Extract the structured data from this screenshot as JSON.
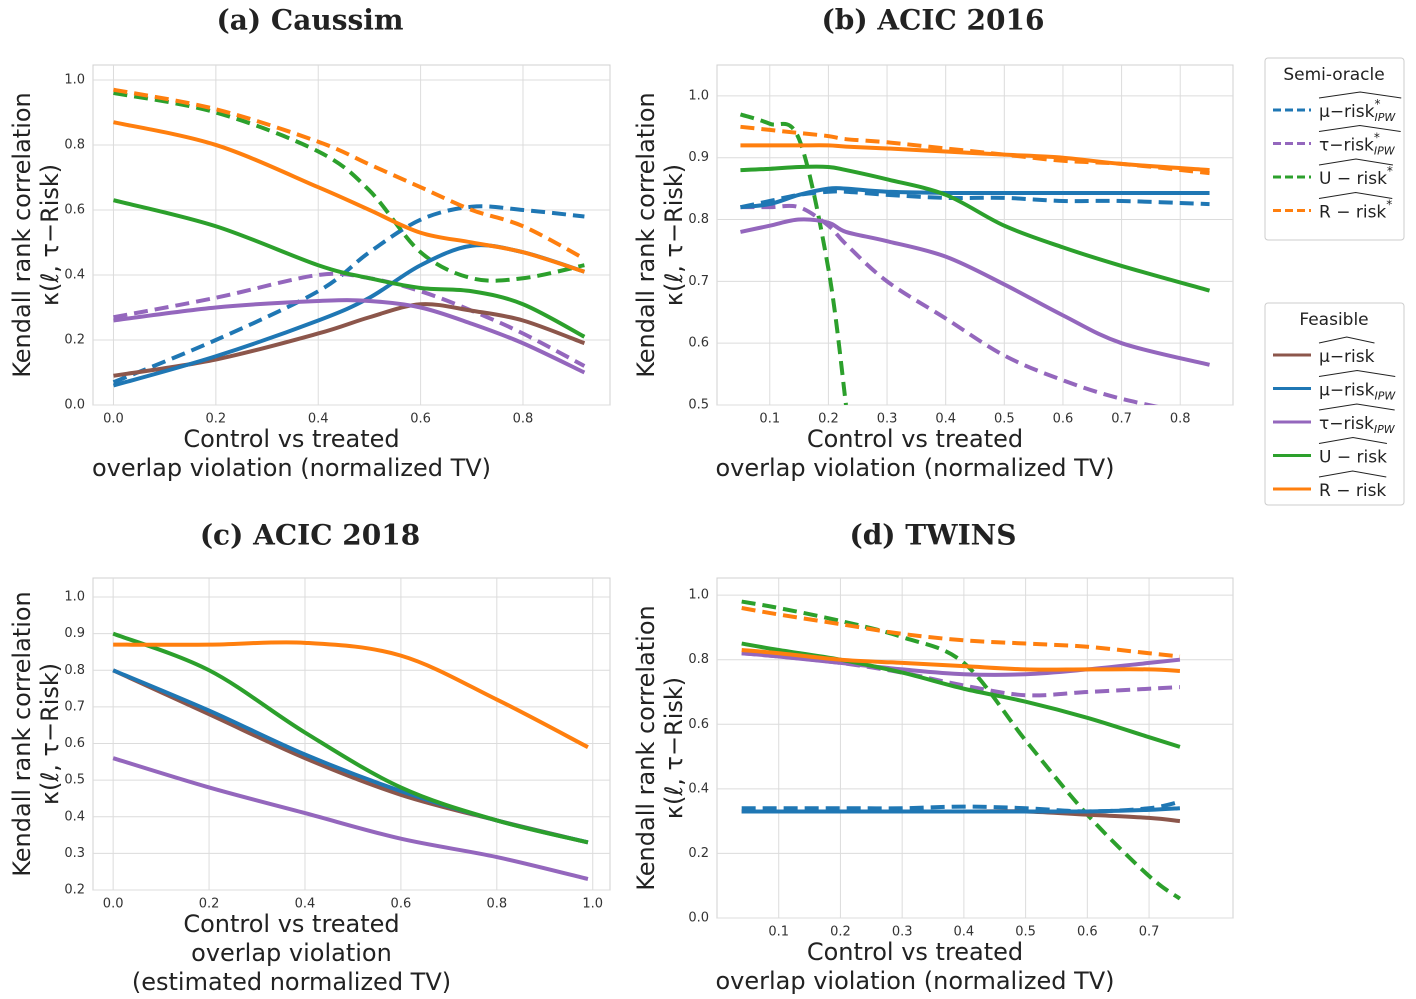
{
  "chart_data": [
    {
      "type": "line",
      "title": "(a) Caussim",
      "y_label": [
        "Kendall rank correlation",
        "κ(ℓ, τ−Risk)"
      ],
      "x_label": [
        "Control vs treated",
        "overlap violation (normalized TV)"
      ],
      "xlim": [
        -0.04,
        0.97
      ],
      "ylim": [
        0,
        1.046
      ],
      "xticks": [
        {
          "value": 0,
          "label": "0.0"
        },
        0.2,
        0.4,
        0.6,
        0.8
      ],
      "yticks": [
        {
          "value": 0,
          "label": "0.0"
        },
        0.2,
        0.4,
        0.6,
        0.8,
        {
          "value": 1,
          "label": "1.0"
        }
      ],
      "grid": true,
      "x": [
        0,
        0.2,
        0.4,
        0.5,
        0.6,
        0.7,
        0.8,
        0.92
      ],
      "series": [
        {
          "color": "#1f77b4",
          "dashed": true,
          "values": [
            0.07,
            0.2,
            0.35,
            0.47,
            0.57,
            0.61,
            0.6,
            0.58
          ]
        },
        {
          "color": "#9467bd",
          "dashed": true,
          "values": [
            0.27,
            0.33,
            0.4,
            0.39,
            0.35,
            0.29,
            0.22,
            0.12
          ]
        },
        {
          "color": "#2ca02c",
          "dashed": true,
          "values": [
            0.96,
            0.9,
            0.78,
            0.66,
            0.47,
            0.39,
            0.39,
            0.43
          ]
        },
        {
          "color": "#ff7f0e",
          "dashed": true,
          "values": [
            0.97,
            0.91,
            0.81,
            0.74,
            0.67,
            0.6,
            0.55,
            0.45
          ]
        },
        {
          "color": "#8c564b",
          "dashed": false,
          "values": [
            0.09,
            0.14,
            0.22,
            0.27,
            0.31,
            0.29,
            0.26,
            0.19
          ]
        },
        {
          "color": "#1f77b4",
          "dashed": false,
          "values": [
            0.06,
            0.15,
            0.26,
            0.33,
            0.43,
            0.49,
            0.47,
            0.41
          ]
        },
        {
          "color": "#9467bd",
          "dashed": false,
          "values": [
            0.26,
            0.3,
            0.32,
            0.32,
            0.3,
            0.25,
            0.19,
            0.1
          ]
        },
        {
          "color": "#2ca02c",
          "dashed": false,
          "values": [
            0.63,
            0.55,
            0.43,
            0.39,
            0.36,
            0.35,
            0.31,
            0.21
          ]
        },
        {
          "color": "#ff7f0e",
          "dashed": false,
          "values": [
            0.87,
            0.8,
            0.67,
            0.6,
            0.53,
            0.5,
            0.47,
            0.41
          ]
        }
      ]
    },
    {
      "type": "line",
      "title": "(b) ACIC 2016",
      "y_label": [
        "Kendall rank correlation",
        "κ(ℓ, τ−Risk)"
      ],
      "x_label": [
        "Control vs treated",
        "overlap violation (normalized TV)"
      ],
      "xlim": [
        0.01,
        0.89
      ],
      "ylim": [
        0.5,
        1.05
      ],
      "xticks": [
        0.1,
        0.2,
        0.3,
        0.4,
        0.5,
        0.6,
        0.7,
        0.8
      ],
      "yticks": [
        0.5,
        0.6,
        0.7,
        0.8,
        0.9,
        {
          "value": 1,
          "label": "1.0"
        }
      ],
      "grid": true,
      "x": [
        0.05,
        0.1,
        0.15,
        0.2,
        0.23,
        0.3,
        0.4,
        0.5,
        0.6,
        0.7,
        0.85
      ],
      "series": [
        {
          "color": "#1f77b4",
          "dashed": true,
          "values": [
            0.82,
            0.83,
            0.84,
            0.845,
            0.845,
            0.84,
            0.835,
            0.835,
            0.83,
            0.83,
            0.825
          ]
        },
        {
          "color": "#9467bd",
          "dashed": true,
          "values": [
            0.82,
            0.82,
            0.82,
            0.79,
            0.76,
            0.7,
            0.64,
            0.58,
            0.54,
            0.51,
            0.48
          ]
        },
        {
          "color": "#2ca02c",
          "dashed": true,
          "values": [
            0.97,
            0.955,
            0.93,
            0.72,
            0.5,
            null,
            null,
            null,
            null,
            null,
            null
          ]
        },
        {
          "color": "#ff7f0e",
          "dashed": true,
          "values": [
            0.95,
            0.945,
            0.94,
            0.935,
            0.93,
            0.925,
            0.915,
            0.905,
            0.895,
            0.89,
            0.875
          ]
        },
        {
          "color": "#1f77b4",
          "dashed": false,
          "values": [
            0.82,
            0.825,
            0.84,
            0.85,
            0.85,
            0.845,
            0.843,
            0.843,
            0.843,
            0.843,
            0.843
          ]
        },
        {
          "color": "#9467bd",
          "dashed": false,
          "values": [
            0.78,
            0.79,
            0.8,
            0.795,
            0.78,
            0.765,
            0.74,
            0.695,
            0.645,
            0.6,
            0.565
          ]
        },
        {
          "color": "#2ca02c",
          "dashed": false,
          "values": [
            0.88,
            0.882,
            0.885,
            0.885,
            0.88,
            0.865,
            0.84,
            0.79,
            0.755,
            0.725,
            0.685
          ]
        },
        {
          "color": "#ff7f0e",
          "dashed": false,
          "values": [
            0.92,
            0.92,
            0.92,
            0.92,
            0.918,
            0.915,
            0.91,
            0.905,
            0.9,
            0.89,
            0.88
          ]
        }
      ]
    },
    {
      "type": "line",
      "title": "(c) ACIC 2018",
      "y_label": [
        "Kendall rank correlation",
        "κ(ℓ, τ−Risk)"
      ],
      "x_label": [
        "Control vs treated",
        "overlap violation",
        "(estimated normalized TV)"
      ],
      "xlim": [
        -0.042,
        1.036
      ],
      "ylim": [
        0.2,
        1.052
      ],
      "xticks": [
        {
          "value": 0,
          "label": "0.0"
        },
        0.2,
        0.4,
        0.6,
        0.8,
        {
          "value": 1,
          "label": "1.0"
        }
      ],
      "yticks": [
        0.2,
        0.3,
        0.4,
        0.5,
        0.6,
        0.7,
        0.8,
        0.9,
        {
          "value": 1,
          "label": "1.0"
        }
      ],
      "grid": true,
      "x": [
        0,
        0.2,
        0.4,
        0.6,
        0.8,
        0.99
      ],
      "series": [
        {
          "color": "#8c564b",
          "dashed": false,
          "values": [
            0.8,
            0.68,
            0.56,
            0.46,
            0.39,
            0.33
          ]
        },
        {
          "color": "#1f77b4",
          "dashed": false,
          "values": [
            0.8,
            0.69,
            0.57,
            0.47,
            0.39,
            0.33
          ]
        },
        {
          "color": "#9467bd",
          "dashed": false,
          "values": [
            0.56,
            0.48,
            0.41,
            0.34,
            0.29,
            0.23
          ]
        },
        {
          "color": "#2ca02c",
          "dashed": false,
          "values": [
            0.9,
            0.8,
            0.63,
            0.48,
            0.39,
            0.33
          ]
        },
        {
          "color": "#ff7f0e",
          "dashed": false,
          "values": [
            0.87,
            0.87,
            0.875,
            0.84,
            0.72,
            0.59
          ]
        }
      ]
    },
    {
      "type": "line",
      "title": "(d) TWINS",
      "y_label": [
        "Kendall rank correlation",
        "κ(ℓ, τ−Risk)"
      ],
      "x_label": [
        "Control vs treated",
        "overlap violation (normalized TV)"
      ],
      "xlim": [
        0,
        0.836
      ],
      "ylim": [
        0,
        1.053
      ],
      "xticks": [
        0.1,
        0.2,
        0.3,
        0.4,
        0.5,
        0.6,
        0.7
      ],
      "yticks": [
        {
          "value": 0,
          "label": "0.0"
        },
        0.2,
        0.4,
        0.6,
        0.8,
        {
          "value": 1,
          "label": "1.0"
        }
      ],
      "grid": true,
      "x": [
        0.04,
        0.1,
        0.2,
        0.3,
        0.4,
        0.5,
        0.6,
        0.7,
        0.75
      ],
      "series": [
        {
          "color": "#1f77b4",
          "dashed": true,
          "values": [
            0.34,
            0.34,
            0.34,
            0.34,
            0.345,
            0.34,
            0.33,
            0.34,
            0.36
          ]
        },
        {
          "color": "#9467bd",
          "dashed": true,
          "values": [
            0.82,
            0.81,
            0.79,
            0.76,
            0.72,
            0.69,
            0.7,
            0.71,
            0.715
          ]
        },
        {
          "color": "#2ca02c",
          "dashed": true,
          "values": [
            0.98,
            0.96,
            0.92,
            0.87,
            0.79,
            0.55,
            0.32,
            0.13,
            0.06
          ]
        },
        {
          "color": "#ff7f0e",
          "dashed": true,
          "values": [
            0.96,
            0.94,
            0.91,
            0.88,
            0.86,
            0.85,
            0.84,
            0.82,
            0.81
          ]
        },
        {
          "color": "#8c564b",
          "dashed": false,
          "values": [
            0.33,
            0.33,
            0.33,
            0.33,
            0.33,
            0.33,
            0.32,
            0.31,
            0.3
          ]
        },
        {
          "color": "#1f77b4",
          "dashed": false,
          "values": [
            0.33,
            0.33,
            0.33,
            0.33,
            0.33,
            0.33,
            0.33,
            0.335,
            0.34
          ]
        },
        {
          "color": "#9467bd",
          "dashed": false,
          "values": [
            0.82,
            0.81,
            0.79,
            0.77,
            0.755,
            0.755,
            0.77,
            0.79,
            0.8
          ]
        },
        {
          "color": "#2ca02c",
          "dashed": false,
          "values": [
            0.85,
            0.83,
            0.8,
            0.76,
            0.71,
            0.67,
            0.62,
            0.56,
            0.53
          ]
        },
        {
          "color": "#ff7f0e",
          "dashed": false,
          "values": [
            0.83,
            0.82,
            0.8,
            0.79,
            0.78,
            0.77,
            0.77,
            0.77,
            0.765
          ]
        }
      ]
    }
  ],
  "legends": [
    {
      "title": "Semi-oracle",
      "entries": [
        {
          "name": "μ−risk",
          "sup": "*",
          "sub": "IPW",
          "color": "#1f77b4",
          "dashed": true
        },
        {
          "name": "τ−risk",
          "sup": "*",
          "sub": "IPW",
          "color": "#9467bd",
          "dashed": true
        },
        {
          "name": "U − risk",
          "sup": "*",
          "color": "#2ca02c",
          "dashed": true
        },
        {
          "name": "R − risk",
          "sup": "*",
          "color": "#ff7f0e",
          "dashed": true
        }
      ]
    },
    {
      "title": "Feasible",
      "entries": [
        {
          "name": "μ−risk",
          "color": "#8c564b",
          "dashed": false
        },
        {
          "name": "μ−risk",
          "sub": "IPW",
          "color": "#1f77b4",
          "dashed": false
        },
        {
          "name": "τ−risk",
          "sub": "IPW",
          "color": "#9467bd",
          "dashed": false
        },
        {
          "name": "U − risk",
          "color": "#2ca02c",
          "dashed": false
        },
        {
          "name": "R − risk",
          "color": "#ff7f0e",
          "dashed": false
        }
      ]
    }
  ]
}
